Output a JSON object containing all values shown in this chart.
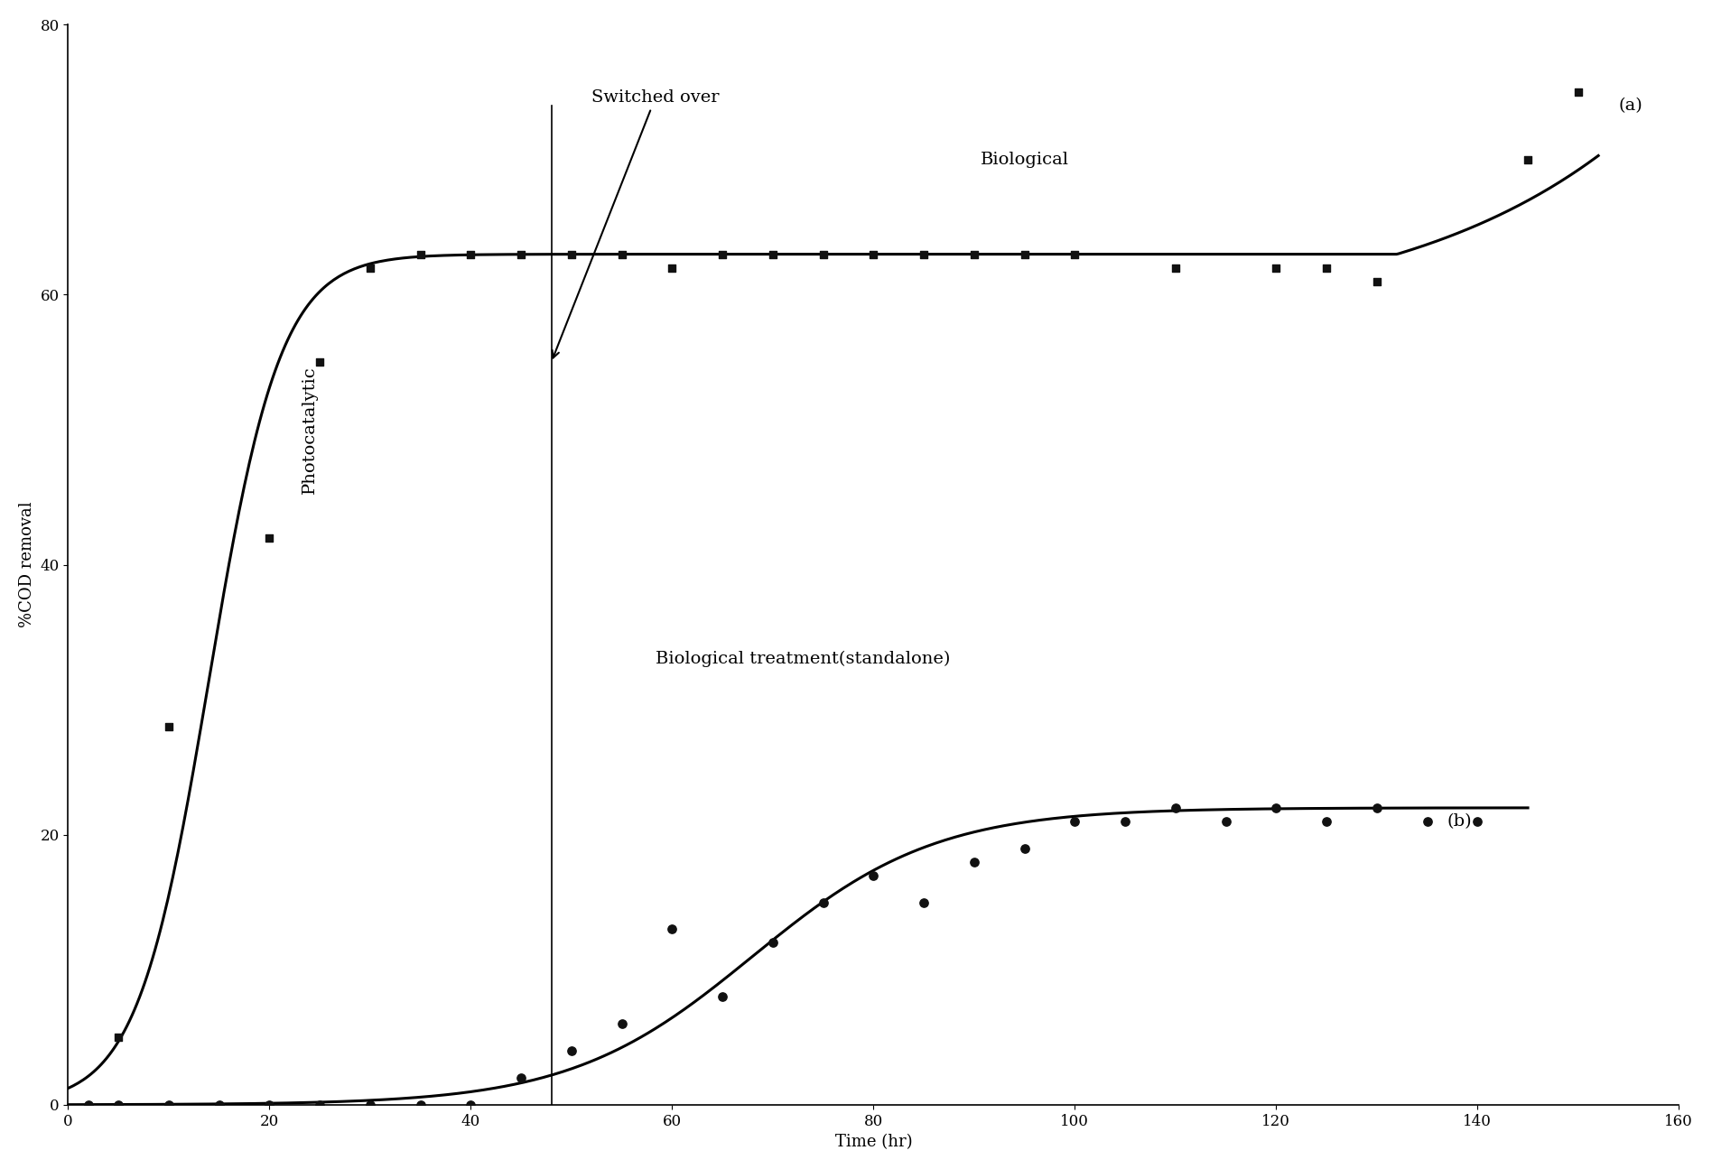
{
  "title": "",
  "xlabel": "Time (hr)",
  "ylabel": "%COD removal",
  "xlim": [
    0,
    160
  ],
  "ylim": [
    0,
    80
  ],
  "xticks": [
    0,
    20,
    40,
    60,
    80,
    100,
    120,
    140,
    160
  ],
  "yticks": [
    0,
    20,
    40,
    60,
    80
  ],
  "background_color": "#ffffff",
  "curve_a_scatter_x": [
    5,
    10,
    20,
    25,
    30,
    35,
    40,
    45,
    50,
    55,
    60,
    65,
    70,
    75,
    80,
    85,
    90,
    95,
    100,
    110,
    120,
    125,
    130,
    145,
    150
  ],
  "curve_a_scatter_y": [
    5,
    28,
    42,
    55,
    62,
    63,
    63,
    63,
    63,
    63,
    62,
    63,
    63,
    63,
    63,
    63,
    63,
    63,
    63,
    62,
    62,
    62,
    61,
    70,
    75
  ],
  "curve_b_scatter_x": [
    2,
    5,
    10,
    15,
    20,
    25,
    30,
    35,
    40,
    45,
    50,
    55,
    60,
    65,
    70,
    75,
    80,
    85,
    90,
    95,
    100,
    105,
    110,
    115,
    120,
    125,
    130,
    135,
    140
  ],
  "curve_b_scatter_y": [
    0,
    0,
    0,
    0,
    0,
    0,
    0,
    0,
    0,
    2,
    4,
    6,
    13,
    8,
    12,
    15,
    17,
    15,
    18,
    19,
    21,
    21,
    22,
    21,
    22,
    21,
    22,
    21,
    21
  ],
  "switched_over_x": 48,
  "switched_over_label": "Switched over",
  "line_color": "#000000",
  "scatter_color": "#111111",
  "font_size_labels": 14,
  "font_size_axis": 13,
  "font_size_ticks": 12
}
